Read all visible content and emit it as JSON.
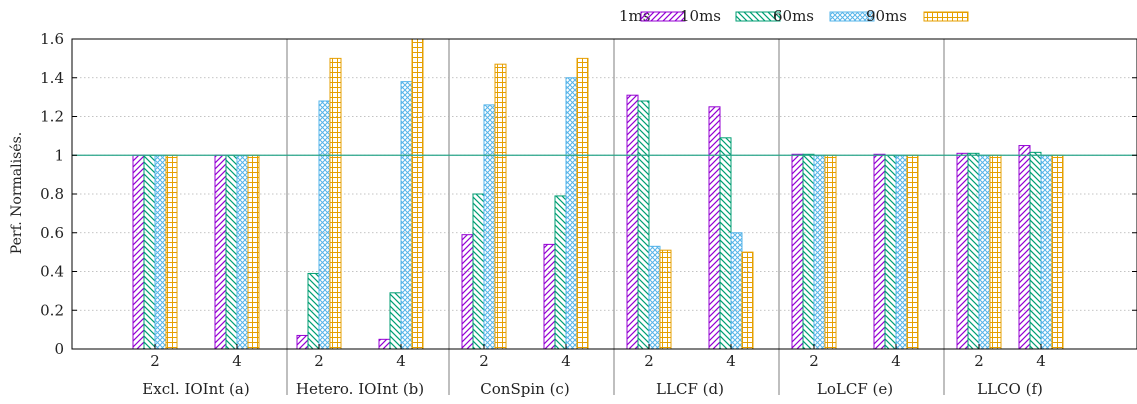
{
  "chart_data": {
    "type": "bar",
    "title": "",
    "xlabel": "",
    "ylabel": "Perf. Normalisés.",
    "ylim": [
      0,
      1.6
    ],
    "yticks": [
      0,
      0.2,
      0.4,
      0.6,
      0.8,
      1,
      1.2,
      1.4,
      1.6
    ],
    "grid": true,
    "reference_line": 1,
    "legend_position": "top-right",
    "groups": [
      {
        "label": "Excl. IOInt (a)",
        "subcategories": [
          "2",
          "4"
        ]
      },
      {
        "label": "Hetero. IOInt (b)",
        "subcategories": [
          "2",
          "4"
        ]
      },
      {
        "label": "ConSpin (c)",
        "subcategories": [
          "2",
          "4"
        ]
      },
      {
        "label": "LLCF (d)",
        "subcategories": [
          "2",
          "4"
        ]
      },
      {
        "label": "LoLCF (e)",
        "subcategories": [
          "2",
          "4"
        ]
      },
      {
        "label": "LLCO (f)",
        "subcategories": [
          "2",
          "4"
        ]
      }
    ],
    "series": [
      {
        "name": "1ms",
        "color": "#9400d3",
        "values": [
          1.0,
          1.0,
          0.07,
          0.05,
          0.59,
          0.54,
          1.31,
          1.25,
          1.005,
          1.005,
          1.01,
          1.05
        ]
      },
      {
        "name": "10ms",
        "color": "#009e73",
        "values": [
          1.0,
          1.0,
          0.39,
          0.29,
          0.8,
          0.79,
          1.28,
          1.09,
          1.005,
          1.0,
          1.01,
          1.015
        ]
      },
      {
        "name": "60ms",
        "color": "#56b4e9",
        "values": [
          1.0,
          1.0,
          1.28,
          1.38,
          1.26,
          1.4,
          0.53,
          0.6,
          1.0,
          1.0,
          1.0,
          1.0
        ]
      },
      {
        "name": "90ms",
        "color": "#e69f00",
        "values": [
          1.0,
          1.0,
          1.5,
          1.6,
          1.47,
          1.5,
          0.51,
          0.5,
          1.0,
          1.0,
          1.0,
          1.0
        ]
      }
    ]
  }
}
